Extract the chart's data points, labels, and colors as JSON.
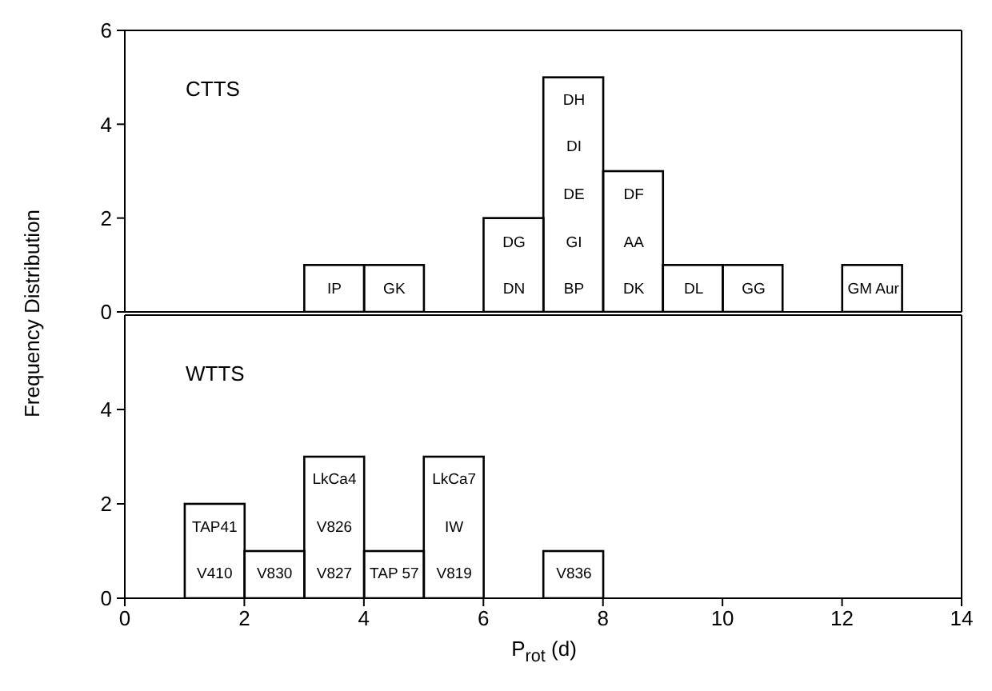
{
  "chart_data": [
    {
      "type": "histogram",
      "ylabel": "Frequency Distribution",
      "bins": [
        0,
        1,
        2,
        3,
        4,
        5,
        6,
        7,
        8,
        9,
        10,
        11,
        12,
        13,
        14
      ],
      "values": [
        0,
        0,
        0,
        1,
        1,
        0,
        2,
        5,
        3,
        1,
        1,
        0,
        1,
        0
      ],
      "color": "#000000",
      "xlim": [
        0,
        14
      ],
      "ylim": [
        0,
        6
      ],
      "yticks": [
        0,
        2,
        4,
        6
      ],
      "tick_labels": "y",
      "annotations": [
        "CTTS",
        "IP",
        "GK",
        "DN",
        "DG",
        "BP",
        "GI",
        "DE",
        "DI",
        "DH",
        "DK",
        "AA",
        "DF",
        "DL",
        "GG",
        "GM Aur"
      ]
    },
    {
      "type": "histogram",
      "xlabel": "P$_{rot}$ (d)",
      "bins": [
        0,
        1,
        2,
        3,
        4,
        5,
        6,
        7,
        8,
        9,
        10,
        11,
        12,
        13,
        14
      ],
      "values": [
        0,
        2,
        1,
        3,
        1,
        3,
        0,
        1,
        0,
        0,
        0,
        0,
        0,
        0
      ],
      "color": "#000000",
      "xlim": [
        0,
        14
      ],
      "xticks": [
        0,
        2,
        4,
        6,
        8,
        10,
        12,
        14
      ],
      "ylim": [
        0,
        6
      ],
      "yticks": [
        0,
        2,
        4
      ],
      "annotations": [
        "WTTS",
        "V410",
        "TAP41",
        "V830",
        "V827",
        "V826",
        "LkCa4",
        "TAP 57",
        "V819",
        "IW",
        "LkCa7",
        "V836"
      ]
    }
  ]
}
